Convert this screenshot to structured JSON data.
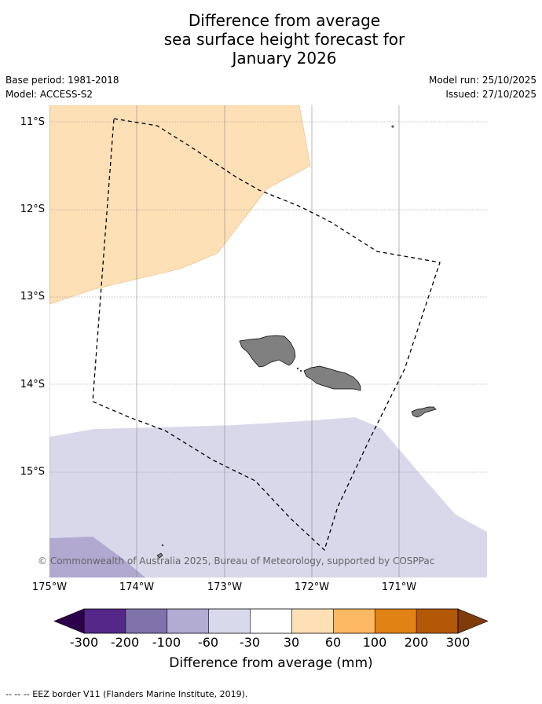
{
  "title": {
    "line1": "Difference from average",
    "line2": "sea surface height forecast for",
    "line3": "January 2026"
  },
  "meta": {
    "base_period": "Base period: 1981-2018",
    "model": "Model: ACCESS-S2",
    "model_run": "Model run: 25/10/2025",
    "issued": "Issued: 27/10/2025"
  },
  "map": {
    "lat_labels": [
      "11°S",
      "12°S",
      "13°S",
      "14°S",
      "15°S"
    ],
    "lon_labels": [
      "175°W",
      "174°W",
      "173°W",
      "172°W",
      "171°W"
    ],
    "copyright": "© Commonwealth of Australia 2025, Bureau of Meteorology, supported by COSPPac",
    "colors": {
      "land": "#808080",
      "positive_30_60": "#fde0b6",
      "negative_30_60": "#d8d8ea",
      "negative_60_100": "#b1a9d0",
      "eez_line": "#000000"
    }
  },
  "colorbar": {
    "ticks": [
      "-300",
      "-200",
      "-100",
      "-60",
      "-30",
      "30",
      "60",
      "100",
      "200",
      "300"
    ],
    "colors": [
      "#2d004b",
      "#542788",
      "#8073ac",
      "#b2abd2",
      "#d8daeb",
      "#ffffff",
      "#fee0b6",
      "#fdb863",
      "#e08214",
      "#b35806",
      "#7f3b08"
    ],
    "title": "Difference from average (mm)"
  },
  "footer": "--  --  -- EEZ border V11 (Flanders Marine Institute, 2019)."
}
